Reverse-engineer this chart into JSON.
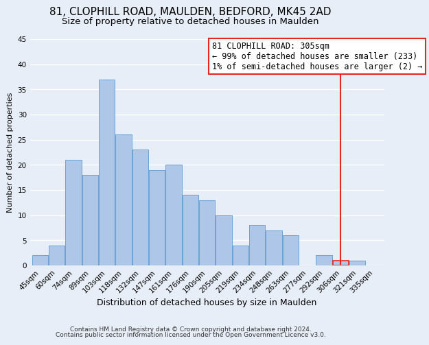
{
  "title": "81, CLOPHILL ROAD, MAULDEN, BEDFORD, MK45 2AD",
  "subtitle": "Size of property relative to detached houses in Maulden",
  "xlabel": "Distribution of detached houses by size in Maulden",
  "ylabel": "Number of detached properties",
  "footer_lines": [
    "Contains HM Land Registry data © Crown copyright and database right 2024.",
    "Contains public sector information licensed under the Open Government Licence v3.0."
  ],
  "bin_labels": [
    "45sqm",
    "60sqm",
    "74sqm",
    "89sqm",
    "103sqm",
    "118sqm",
    "132sqm",
    "147sqm",
    "161sqm",
    "176sqm",
    "190sqm",
    "205sqm",
    "219sqm",
    "234sqm",
    "248sqm",
    "263sqm",
    "277sqm",
    "292sqm",
    "306sqm",
    "321sqm",
    "335sqm"
  ],
  "bar_values": [
    2,
    4,
    21,
    18,
    37,
    26,
    23,
    19,
    20,
    14,
    13,
    10,
    4,
    8,
    7,
    6,
    0,
    2,
    1,
    1,
    0
  ],
  "bar_color": "#aec6e8",
  "bar_edge_color": "#6aa3d5",
  "highlight_bar_index": 18,
  "highlight_bar_edge_color": "#e8261e",
  "vline_x": 18,
  "vline_color": "#e8261e",
  "annotation_text": "81 CLOPHILL ROAD: 305sqm\n← 99% of detached houses are smaller (233)\n1% of semi-detached houses are larger (2) →",
  "annotation_box_color": "#ffffff",
  "annotation_box_edge_color": "#e8261e",
  "ylim": [
    0,
    45
  ],
  "yticks": [
    0,
    5,
    10,
    15,
    20,
    25,
    30,
    35,
    40,
    45
  ],
  "background_color": "#e8eef7",
  "grid_color": "#ffffff",
  "title_fontsize": 11,
  "subtitle_fontsize": 9.5,
  "xlabel_fontsize": 9,
  "ylabel_fontsize": 8,
  "tick_fontsize": 7.5,
  "annotation_fontsize": 8.5,
  "footer_fontsize": 6.5
}
